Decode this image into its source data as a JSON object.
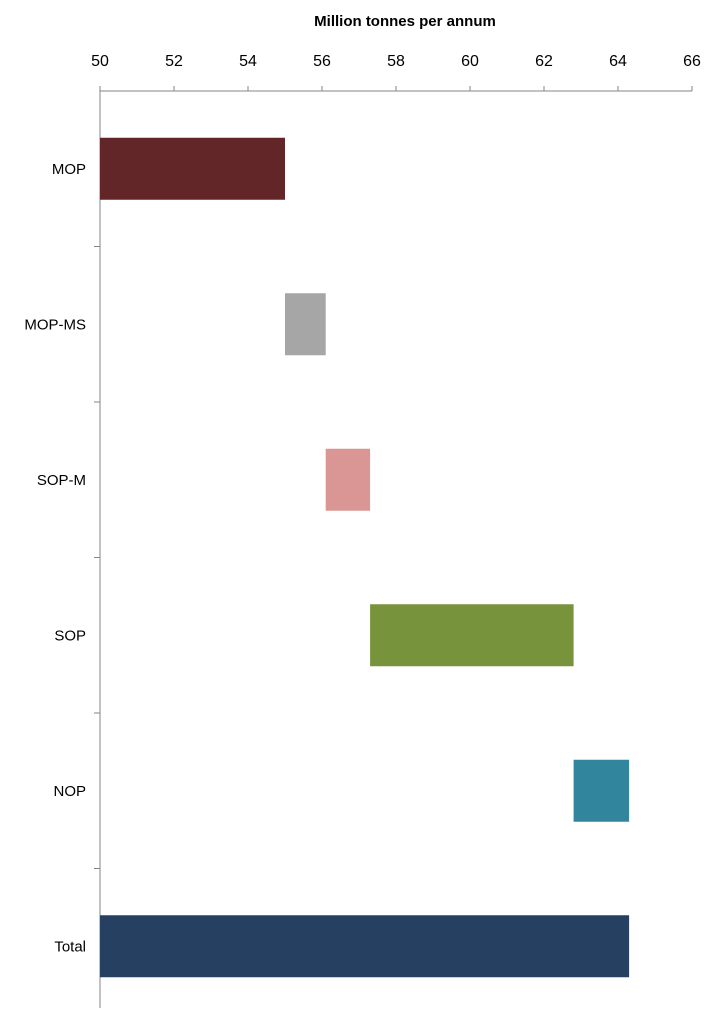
{
  "chart_data": {
    "type": "bar",
    "orientation": "horizontal",
    "style": "waterfall",
    "title": "",
    "xlabel": "Million tonnes per annum",
    "ylabel": "",
    "x_axis_position": "top",
    "xlim": [
      50,
      66
    ],
    "xticks": [
      50,
      52,
      54,
      56,
      58,
      60,
      62,
      64,
      66
    ],
    "grid": false,
    "legend": "none",
    "categories": [
      "MOP",
      "MOP-MS",
      "SOP-M",
      "SOP",
      "NOP",
      "Total"
    ],
    "bars": [
      {
        "category": "MOP",
        "start": 50.0,
        "end": 55.0,
        "color": "#632628"
      },
      {
        "category": "MOP-MS",
        "start": 55.0,
        "end": 56.1,
        "color": "#A6A6A6"
      },
      {
        "category": "SOP-M",
        "start": 56.1,
        "end": 57.3,
        "color": "#D99694"
      },
      {
        "category": "SOP",
        "start": 57.3,
        "end": 62.8,
        "color": "#77933C"
      },
      {
        "category": "NOP",
        "start": 62.8,
        "end": 64.3,
        "color": "#31859C"
      },
      {
        "category": "Total",
        "start": 50.0,
        "end": 64.3,
        "color": "#254061"
      }
    ]
  }
}
